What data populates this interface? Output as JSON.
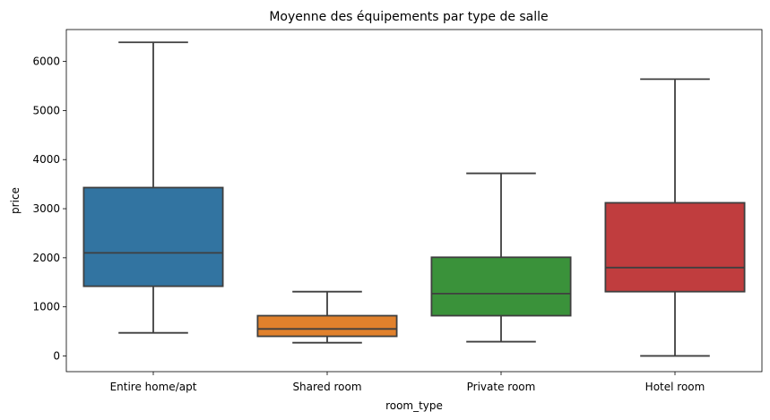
{
  "chart_data": {
    "type": "box",
    "title": "Moyenne des équipements par type de salle",
    "xlabel": "room_type",
    "ylabel": "price",
    "ylim": [
      -320,
      6650
    ],
    "yticks": [
      0,
      1000,
      2000,
      3000,
      4000,
      5000,
      6000
    ],
    "grid": false,
    "line_color": "#3f3f3f",
    "categories": [
      "Entire home/apt",
      "Shared room",
      "Private room",
      "Hotel room"
    ],
    "boxes": [
      {
        "category": "Entire home/apt",
        "whisker_low": 470,
        "q1": 1420,
        "median": 2100,
        "q3": 3430,
        "whisker_high": 6390,
        "color": "#3274a1"
      },
      {
        "category": "Shared room",
        "whisker_low": 270,
        "q1": 400,
        "median": 550,
        "q3": 820,
        "whisker_high": 1310,
        "color": "#e1812c"
      },
      {
        "category": "Private room",
        "whisker_low": 290,
        "q1": 820,
        "median": 1270,
        "q3": 2010,
        "whisker_high": 3720,
        "color": "#3a923a"
      },
      {
        "category": "Hotel room",
        "whisker_low": 0,
        "q1": 1310,
        "median": 1800,
        "q3": 3120,
        "whisker_high": 5640,
        "color": "#c03d3e"
      }
    ]
  }
}
